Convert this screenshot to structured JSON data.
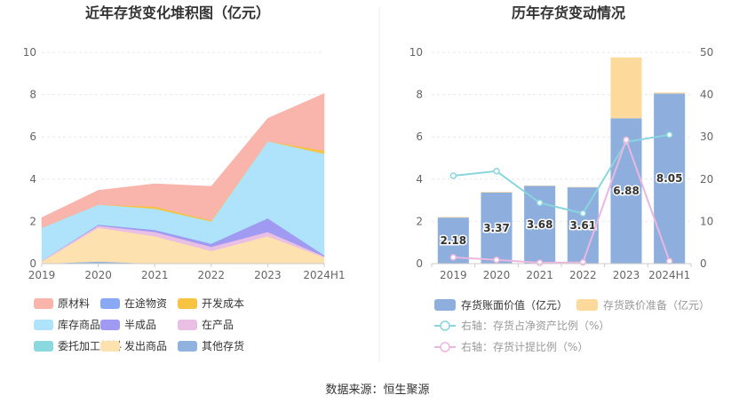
{
  "left_chart": {
    "title": "近年存货变化堆积图（亿元）"
  },
  "right_chart": {
    "title": "历年存货变动情况"
  },
  "source_note": "数据来源：恒生聚源",
  "colors": {
    "原材料": "#f9b4ac",
    "在途物资": "#8aa9f5",
    "开发成本": "#f6c343",
    "库存商品": "#aee3fb",
    "半成品": "#a19af2",
    "在产品": "#e9bfe3",
    "委托加工材料": "#8bd8de",
    "发出商品": "#fde1ae",
    "其他存货": "#8fb2de",
    "账面价值": "#8eaedd",
    "跌价准备": "#fdda9c",
    "净资产比例线": "#88d6de",
    "计提比例线": "#eab7df"
  },
  "chart_data": [
    {
      "type": "area",
      "stacked": true,
      "title": "近年存货变化堆积图（亿元）",
      "x": [
        "2019",
        "2020",
        "2021",
        "2022",
        "2023",
        "2024H1"
      ],
      "ylim": [
        0,
        10
      ],
      "yticks": [
        0,
        2,
        4,
        6,
        8,
        10
      ],
      "grid": true,
      "legend_position": "bottom",
      "series": [
        {
          "name": "其他存货",
          "values": [
            0,
            0.1,
            0,
            0,
            0,
            0
          ]
        },
        {
          "name": "在途物资",
          "values": [
            0,
            0,
            0,
            0,
            0,
            0
          ]
        },
        {
          "name": "发出商品",
          "values": [
            0.1,
            1.6,
            1.3,
            0.6,
            1.3,
            0.3
          ]
        },
        {
          "name": "在产品",
          "values": [
            0.05,
            0.1,
            0.2,
            0.2,
            0.2,
            0.05
          ]
        },
        {
          "name": "半成品",
          "values": [
            0,
            0.05,
            0.1,
            0.15,
            0.65,
            0.05
          ]
        },
        {
          "name": "委托加工材料",
          "values": [
            0,
            0,
            0,
            0,
            0,
            0
          ]
        },
        {
          "name": "库存商品",
          "values": [
            1.55,
            0.95,
            1.0,
            1.05,
            3.65,
            4.8
          ]
        },
        {
          "name": "开发成本",
          "values": [
            0,
            0,
            0.1,
            0.05,
            0,
            0.15
          ]
        },
        {
          "name": "原材料",
          "values": [
            0.48,
            0.67,
            1.08,
            1.61,
            1.08,
            2.7
          ]
        }
      ],
      "legend": [
        "原材料",
        "在途物资",
        "开发成本",
        "库存商品",
        "半成品",
        "在产品",
        "委托加工材料",
        "发出商品",
        "其他存货"
      ]
    },
    {
      "type": "bar",
      "title": "历年存货变动情况",
      "categories": [
        "2019",
        "2020",
        "2021",
        "2022",
        "2023",
        "2024H1"
      ],
      "ylim": [
        0,
        10
      ],
      "yticks": [
        0,
        2,
        4,
        6,
        8,
        10
      ],
      "y2lim": [
        0,
        50
      ],
      "y2ticks": [
        0,
        10,
        20,
        30,
        40,
        50
      ],
      "grid": true,
      "legend_position": "bottom",
      "series": [
        {
          "name": "存货账面价值（亿元）",
          "kind": "bar",
          "stack": "inv",
          "values": [
            2.18,
            3.37,
            3.68,
            3.61,
            6.88,
            8.05
          ],
          "labels": [
            "2.18",
            "3.37",
            "3.68",
            "3.61",
            "6.88",
            "8.05"
          ]
        },
        {
          "name": "存货跌价准备（亿元）",
          "kind": "bar",
          "stack": "inv",
          "values": [
            0.03,
            0.03,
            0.02,
            0.02,
            2.88,
            0.05
          ]
        },
        {
          "name": "右轴：存货占净资产比例（%）",
          "kind": "line",
          "axis": "right",
          "values": [
            20.8,
            21.9,
            14.4,
            11.9,
            28.8,
            30.5
          ]
        },
        {
          "name": "右轴：存货计提比例（%）",
          "kind": "line",
          "axis": "right",
          "values": [
            1.5,
            0.9,
            0.2,
            0.3,
            29.3,
            0.6
          ]
        }
      ]
    }
  ]
}
